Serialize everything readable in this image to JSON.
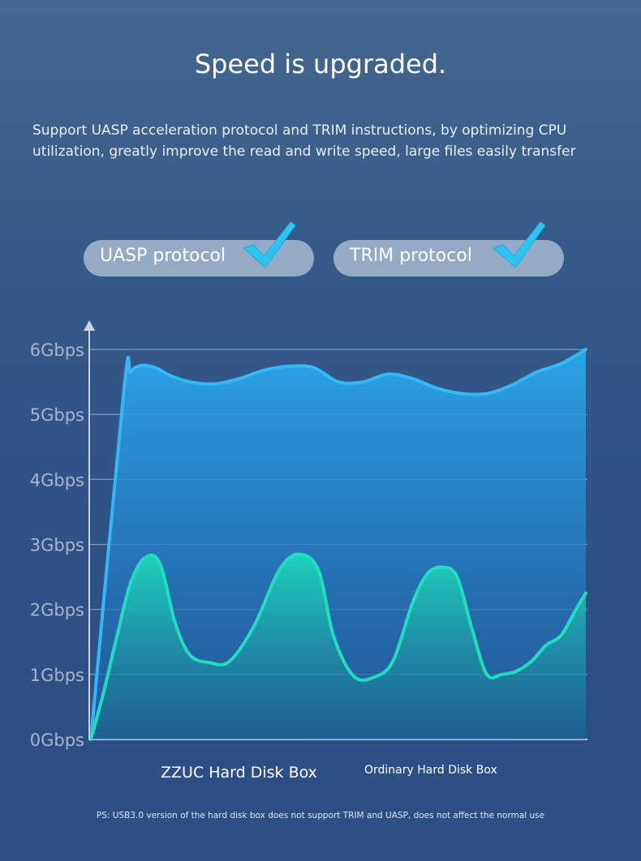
{
  "header": {
    "title": "Speed is upgraded.",
    "description": "Support UASP acceleration protocol and TRIM instructions, by optimizing CPU utilization, greatly improve the read and write speed, large files easily transfer"
  },
  "badges": [
    {
      "label": "UASP protocol",
      "icon": "checkmark-icon"
    },
    {
      "label": "TRIM protocol",
      "icon": "checkmark-icon"
    }
  ],
  "colors": {
    "zzuc_line": "#33b8f5",
    "ordinary_line": "#22dcc0",
    "check": "#2ec4f2"
  },
  "chart_data": {
    "type": "area",
    "ylim": [
      0,
      6
    ],
    "y_ticks": [
      "0Gbps",
      "1Gbps",
      "2Gbps",
      "3Gbps",
      "4Gbps",
      "5Gbps",
      "6Gbps"
    ],
    "x_range": [
      0,
      100
    ],
    "grid": true,
    "series": [
      {
        "name": "ZZUC Hard Disk Box",
        "color": "#33b8f5",
        "x": [
          0,
          6.7,
          8,
          10,
          13,
          16,
          20,
          25,
          30,
          35,
          40,
          45,
          50,
          55,
          60,
          65,
          70,
          75,
          80,
          85,
          90,
          95,
          100
        ],
        "y": [
          0,
          5.4,
          5.65,
          5.75,
          5.72,
          5.6,
          5.5,
          5.47,
          5.55,
          5.68,
          5.74,
          5.72,
          5.5,
          5.5,
          5.62,
          5.55,
          5.4,
          5.32,
          5.32,
          5.45,
          5.65,
          5.78,
          6.0
        ]
      },
      {
        "name": "Ordinary Hard Disk Box",
        "color": "#22dcc0",
        "x": [
          0,
          2.5,
          5,
          8,
          11,
          14,
          17,
          20,
          24,
          28,
          33,
          38,
          42,
          46,
          49,
          53,
          57,
          61,
          65,
          68,
          71,
          74,
          77,
          80,
          83,
          86,
          89,
          92,
          95,
          98,
          100
        ],
        "y": [
          0,
          0.7,
          1.5,
          2.4,
          2.8,
          2.7,
          1.8,
          1.3,
          1.18,
          1.2,
          1.75,
          2.6,
          2.85,
          2.6,
          1.6,
          0.98,
          0.95,
          1.2,
          2.1,
          2.55,
          2.65,
          2.5,
          1.7,
          1.0,
          1.0,
          1.05,
          1.2,
          1.45,
          1.6,
          2.0,
          2.25
        ]
      }
    ]
  },
  "footnote": "PS: USB3.0 version of the hard disk box does not support TRIM and UASP, does not affect the normal use"
}
